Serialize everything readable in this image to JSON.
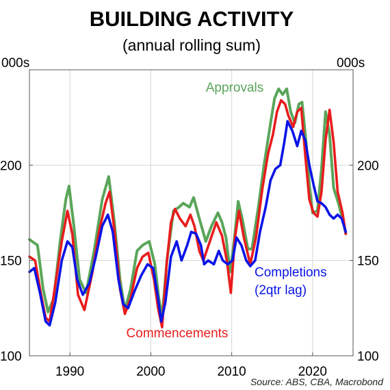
{
  "chart_data": {
    "type": "line",
    "title": "BUILDING ACTIVITY",
    "subtitle": "(annual rolling sum)",
    "y_unit_left": "000s",
    "y_unit_right": "000s",
    "xlim": [
      1985,
      2025
    ],
    "ylim": [
      100,
      250
    ],
    "x_ticks": [
      1990,
      2000,
      2010,
      2020
    ],
    "y_ticks": [
      100,
      150,
      200
    ],
    "grid": true,
    "source": "Source: ABS, CBA, Macrobond",
    "series": [
      {
        "name": "Approvals",
        "color": "#5aa55a",
        "points": [
          [
            1985,
            161
          ],
          [
            1986,
            158
          ],
          [
            1986.7,
            135
          ],
          [
            1987.3,
            123
          ],
          [
            1988,
            130
          ],
          [
            1988.8,
            160
          ],
          [
            1989.5,
            182
          ],
          [
            1989.9,
            189
          ],
          [
            1990.5,
            168
          ],
          [
            1991.2,
            140
          ],
          [
            1992,
            133
          ],
          [
            1993,
            155
          ],
          [
            1994,
            182
          ],
          [
            1994.8,
            194
          ],
          [
            1995.5,
            170
          ],
          [
            1996.2,
            140
          ],
          [
            1996.8,
            124
          ],
          [
            1997.5,
            135
          ],
          [
            1998.3,
            155
          ],
          [
            1999,
            158
          ],
          [
            1999.8,
            160
          ],
          [
            2000.5,
            148
          ],
          [
            2001,
            130
          ],
          [
            2001.4,
            120
          ],
          [
            2002,
            150
          ],
          [
            2002.8,
            176
          ],
          [
            2003.5,
            178
          ],
          [
            2004,
            180
          ],
          [
            2004.8,
            178
          ],
          [
            2005.3,
            183
          ],
          [
            2006,
            172
          ],
          [
            2006.8,
            160
          ],
          [
            2007.5,
            168
          ],
          [
            2008.3,
            175
          ],
          [
            2008.8,
            170
          ],
          [
            2009.3,
            162
          ],
          [
            2009.8,
            144
          ],
          [
            2010.3,
            160
          ],
          [
            2010.8,
            181
          ],
          [
            2011.3,
            172
          ],
          [
            2012,
            156
          ],
          [
            2012.5,
            156
          ],
          [
            2013.3,
            178
          ],
          [
            2014,
            200
          ],
          [
            2014.8,
            222
          ],
          [
            2015.3,
            235
          ],
          [
            2015.8,
            240
          ],
          [
            2016.3,
            237
          ],
          [
            2016.8,
            240
          ],
          [
            2017.3,
            228
          ],
          [
            2017.8,
            222
          ],
          [
            2018.3,
            232
          ],
          [
            2018.7,
            233
          ],
          [
            2019.2,
            212
          ],
          [
            2019.6,
            190
          ],
          [
            2020,
            175
          ],
          [
            2020.6,
            176
          ],
          [
            2021.1,
            198
          ],
          [
            2021.6,
            228
          ],
          [
            2022.1,
            216
          ],
          [
            2022.6,
            188
          ],
          [
            2023.2,
            180
          ],
          [
            2023.8,
            170
          ],
          [
            2024.1,
            164
          ]
        ]
      },
      {
        "name": "Commencements",
        "color": "#e81c1c",
        "points": [
          [
            1985,
            152
          ],
          [
            1985.7,
            150
          ],
          [
            1986.4,
            133
          ],
          [
            1987,
            120
          ],
          [
            1987.5,
            118
          ],
          [
            1988.3,
            140
          ],
          [
            1989,
            160
          ],
          [
            1989.7,
            176
          ],
          [
            1990.3,
            164
          ],
          [
            1991,
            132
          ],
          [
            1991.8,
            124
          ],
          [
            1992.8,
            144
          ],
          [
            1993.6,
            165
          ],
          [
            1994.4,
            180
          ],
          [
            1994.9,
            186
          ],
          [
            1995.5,
            166
          ],
          [
            1996.2,
            135
          ],
          [
            1996.8,
            122
          ],
          [
            1997.5,
            130
          ],
          [
            1998.3,
            146
          ],
          [
            1999,
            152
          ],
          [
            1999.7,
            154
          ],
          [
            2000.4,
            140
          ],
          [
            2000.9,
            125
          ],
          [
            2001.4,
            115
          ],
          [
            2002,
            150
          ],
          [
            2002.5,
            170
          ],
          [
            2003,
            177
          ],
          [
            2003.6,
            172
          ],
          [
            2004.3,
            168
          ],
          [
            2004.9,
            174
          ],
          [
            2005.4,
            168
          ],
          [
            2006,
            155
          ],
          [
            2006.5,
            150
          ],
          [
            2007.3,
            160
          ],
          [
            2008.1,
            170
          ],
          [
            2008.8,
            163
          ],
          [
            2009.4,
            150
          ],
          [
            2009.9,
            133
          ],
          [
            2010.4,
            162
          ],
          [
            2010.9,
            176
          ],
          [
            2011.5,
            162
          ],
          [
            2012.3,
            148
          ],
          [
            2013,
            162
          ],
          [
            2013.8,
            188
          ],
          [
            2014.5,
            206
          ],
          [
            2015.1,
            216
          ],
          [
            2015.6,
            228
          ],
          [
            2016.1,
            234
          ],
          [
            2016.6,
            232
          ],
          [
            2017,
            226
          ],
          [
            2017.6,
            220
          ],
          [
            2018.1,
            228
          ],
          [
            2018.6,
            230
          ],
          [
            2019.1,
            205
          ],
          [
            2019.6,
            182
          ],
          [
            2020.1,
            175
          ],
          [
            2020.6,
            173
          ],
          [
            2021.1,
            186
          ],
          [
            2021.6,
            213
          ],
          [
            2022.1,
            229
          ],
          [
            2022.6,
            212
          ],
          [
            2023.1,
            186
          ],
          [
            2023.7,
            175
          ],
          [
            2024.1,
            164
          ]
        ]
      },
      {
        "name": "Completions\n(2qtr lag)",
        "color": "#0a14e6",
        "points": [
          [
            1985,
            144
          ],
          [
            1985.6,
            146
          ],
          [
            1986.3,
            133
          ],
          [
            1987,
            118
          ],
          [
            1987.5,
            116
          ],
          [
            1988.2,
            128
          ],
          [
            1989,
            150
          ],
          [
            1989.7,
            160
          ],
          [
            1990.3,
            157
          ],
          [
            1990.9,
            140
          ],
          [
            1991.6,
            132
          ],
          [
            1992.4,
            138
          ],
          [
            1993.2,
            152
          ],
          [
            1994,
            168
          ],
          [
            1994.7,
            174
          ],
          [
            1995.3,
            165
          ],
          [
            1996,
            140
          ],
          [
            1996.6,
            127
          ],
          [
            1997.2,
            125
          ],
          [
            1998,
            134
          ],
          [
            1998.8,
            142
          ],
          [
            1999.6,
            148
          ],
          [
            2000.3,
            146
          ],
          [
            2000.9,
            130
          ],
          [
            2001.3,
            118
          ],
          [
            2001.8,
            128
          ],
          [
            2002.5,
            152
          ],
          [
            2003.2,
            160
          ],
          [
            2003.8,
            150
          ],
          [
            2004.5,
            158
          ],
          [
            2005,
            165
          ],
          [
            2005.6,
            164
          ],
          [
            2006.2,
            158
          ],
          [
            2006.6,
            148
          ],
          [
            2007.1,
            150
          ],
          [
            2007.8,
            148
          ],
          [
            2008.4,
            155
          ],
          [
            2008.9,
            150
          ],
          [
            2009.5,
            148
          ],
          [
            2010.1,
            150
          ],
          [
            2010.6,
            162
          ],
          [
            2011.2,
            158
          ],
          [
            2011.8,
            150
          ],
          [
            2012.3,
            147
          ],
          [
            2012.9,
            150
          ],
          [
            2013.5,
            165
          ],
          [
            2014.2,
            178
          ],
          [
            2014.8,
            192
          ],
          [
            2015.4,
            198
          ],
          [
            2016,
            200
          ],
          [
            2016.5,
            212
          ],
          [
            2016.9,
            223
          ],
          [
            2017.5,
            218
          ],
          [
            2018.1,
            210
          ],
          [
            2018.6,
            218
          ],
          [
            2019.1,
            213
          ],
          [
            2019.6,
            200
          ],
          [
            2020.1,
            190
          ],
          [
            2020.6,
            181
          ],
          [
            2021.1,
            180
          ],
          [
            2021.6,
            178
          ],
          [
            2022.1,
            174
          ],
          [
            2022.6,
            172
          ],
          [
            2023.1,
            174
          ],
          [
            2023.6,
            172
          ],
          [
            2024.1,
            165
          ]
        ]
      }
    ]
  }
}
